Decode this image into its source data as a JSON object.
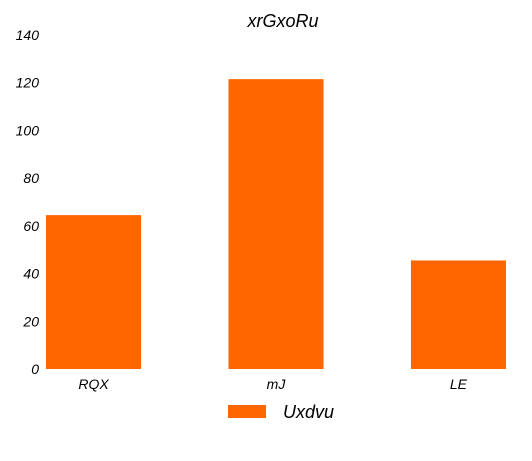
{
  "chart_data": {
    "type": "bar",
    "title": "xrGxoRu",
    "xlabel": "",
    "ylabel": "",
    "categories": [
      "RQX",
      "mJ",
      "LE"
    ],
    "series": [
      {
        "name": "Uxdvu",
        "values": [
          64.5,
          121.5,
          45.5
        ],
        "color": "#ff6600"
      }
    ],
    "ylim": [
      0,
      140
    ],
    "yticks": [
      0,
      20,
      40,
      60,
      80,
      100,
      120,
      140
    ],
    "ytick_labels": [
      "0",
      "20",
      "40",
      "60",
      "80",
      "100",
      "120",
      "140"
    ],
    "grid": false,
    "legend_position": "bottom-center"
  }
}
